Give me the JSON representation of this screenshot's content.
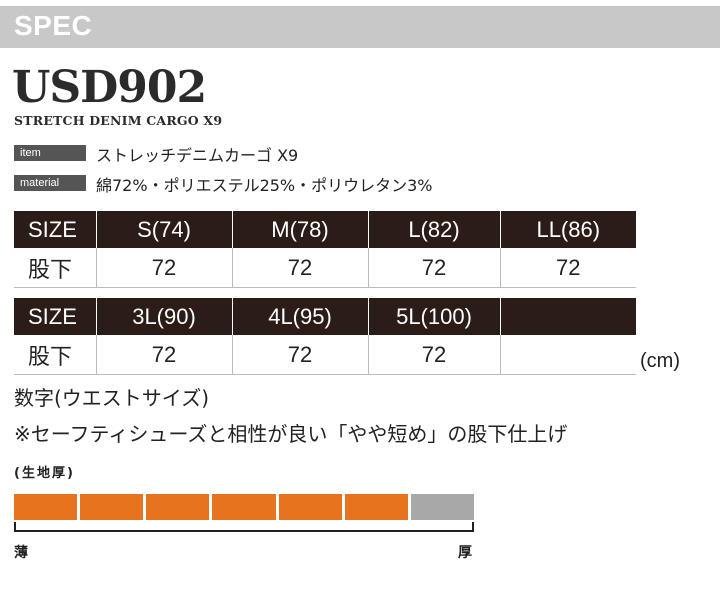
{
  "header": {
    "label": "SPEC"
  },
  "product": {
    "code": "USD902",
    "subtitle": "STRETCH DENIM CARGO X9"
  },
  "attributes": [
    {
      "tag": "item",
      "value": "ストレッチデニムカーゴ X9"
    },
    {
      "tag": "material",
      "value": "綿72%・ポリエステル25%・ポリウレタン3%"
    }
  ],
  "table1": {
    "headers": [
      "SIZE",
      "S(74)",
      "M(78)",
      "L(82)",
      "LL(86)"
    ],
    "row": [
      "股下",
      "72",
      "72",
      "72",
      "72"
    ]
  },
  "table2": {
    "headers": [
      "SIZE",
      "3L(90)",
      "4L(95)",
      "5L(100)",
      ""
    ],
    "row": [
      "股下",
      "72",
      "72",
      "72",
      ""
    ]
  },
  "unit": "(cm)",
  "notes": [
    "数字(ウエストサイズ)",
    "※セーフティシューズと相性が良い「やや短め」の股下仕上げ"
  ],
  "thickness": {
    "label": "(生地厚)",
    "level": 6,
    "total": 7,
    "fill_color": "#e8731e",
    "empty_color": "#a8a8a8",
    "min_label": "薄",
    "max_label": "厚"
  }
}
